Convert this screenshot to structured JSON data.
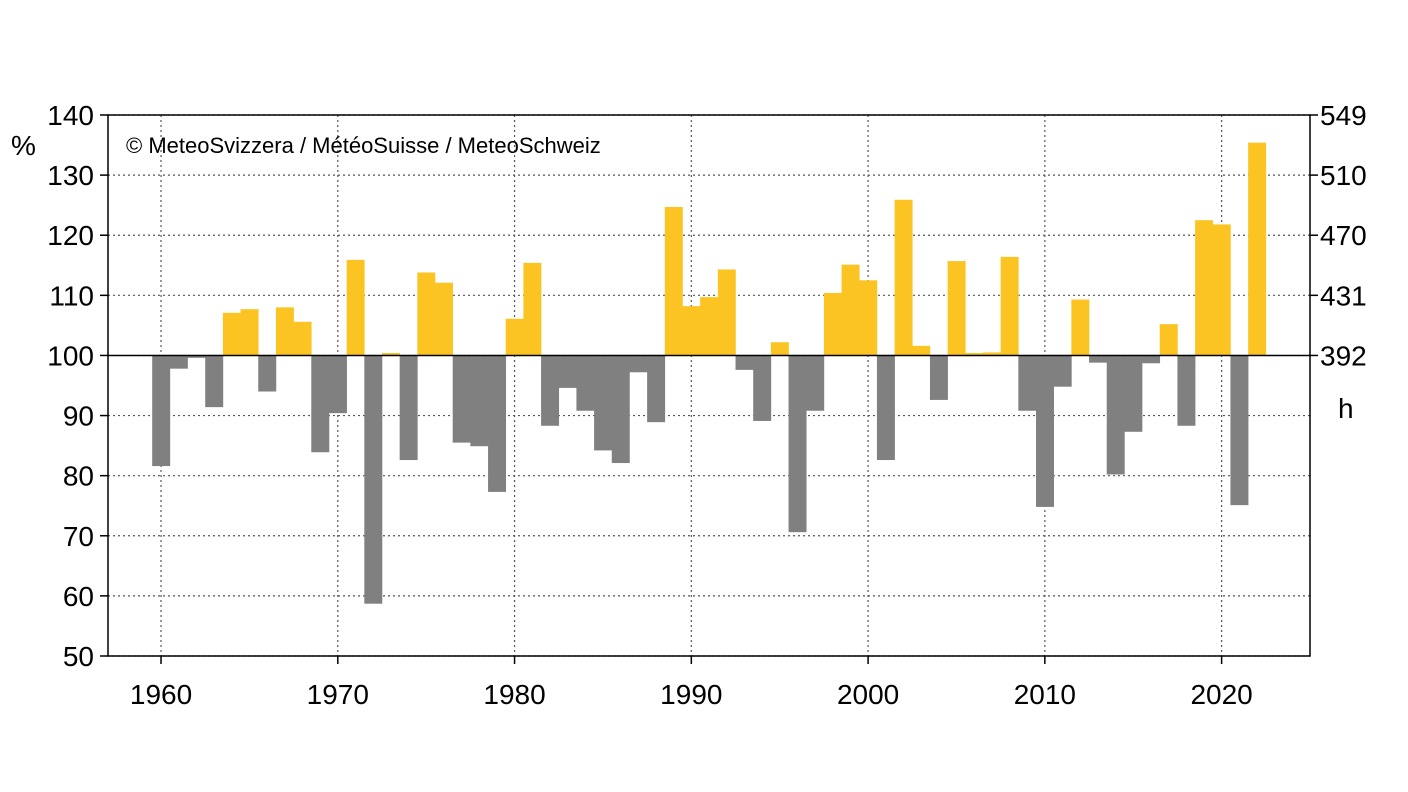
{
  "chart_data": {
    "type": "bar",
    "copyright": "© MeteoSvizzera / MétéoSuisse / MeteoSchweiz",
    "ylabel_left": "%",
    "ylabel_right": "h",
    "baseline": 100,
    "ylim": [
      50,
      140
    ],
    "xlim": [
      1957,
      2025
    ],
    "grid": true,
    "x_ticks": [
      1960,
      1970,
      1980,
      1990,
      2000,
      2010,
      2020
    ],
    "x_tick_labels": [
      "1960",
      "1970",
      "1980",
      "1990",
      "2000",
      "2010",
      "2020"
    ],
    "y_ticks_left": [
      50,
      60,
      70,
      80,
      90,
      100,
      110,
      120,
      130,
      140
    ],
    "y_tick_labels_left": [
      "50",
      "60",
      "70",
      "80",
      "90",
      "100",
      "110",
      "120",
      "130",
      "140"
    ],
    "y_ticks_right": [
      100,
      110,
      120,
      130,
      140
    ],
    "y_tick_labels_right": [
      "392",
      "431",
      "470",
      "510",
      "549"
    ],
    "colors": {
      "above": "#fbc423",
      "below": "#808080"
    },
    "x": [
      1960,
      1961,
      1962,
      1963,
      1964,
      1965,
      1966,
      1967,
      1968,
      1969,
      1970,
      1971,
      1972,
      1973,
      1974,
      1975,
      1976,
      1977,
      1978,
      1979,
      1980,
      1981,
      1982,
      1983,
      1984,
      1985,
      1986,
      1987,
      1988,
      1989,
      1990,
      1991,
      1992,
      1993,
      1994,
      1995,
      1996,
      1997,
      1998,
      1999,
      2000,
      2001,
      2002,
      2003,
      2004,
      2005,
      2006,
      2007,
      2008,
      2009,
      2010,
      2011,
      2012,
      2013,
      2014,
      2015,
      2016,
      2017,
      2018,
      2019,
      2020,
      2021,
      2022
    ],
    "values": [
      81.6,
      97.8,
      99.6,
      91.4,
      107.1,
      107.7,
      94.0,
      108.0,
      105.6,
      83.9,
      90.4,
      115.9,
      58.7,
      100.4,
      82.6,
      113.8,
      112.1,
      85.5,
      84.9,
      77.3,
      106.1,
      115.4,
      88.3,
      94.6,
      90.8,
      84.2,
      82.1,
      97.2,
      88.9,
      124.7,
      108.2,
      109.7,
      114.3,
      97.6,
      89.1,
      102.2,
      70.6,
      90.8,
      110.4,
      115.1,
      112.5,
      82.6,
      125.9,
      101.6,
      92.6,
      115.7,
      100.4,
      100.5,
      116.4,
      90.8,
      74.8,
      94.8,
      109.3,
      98.8,
      80.2,
      87.3,
      98.7,
      105.2,
      88.3,
      122.5,
      121.8,
      75.1,
      135.4
    ]
  }
}
